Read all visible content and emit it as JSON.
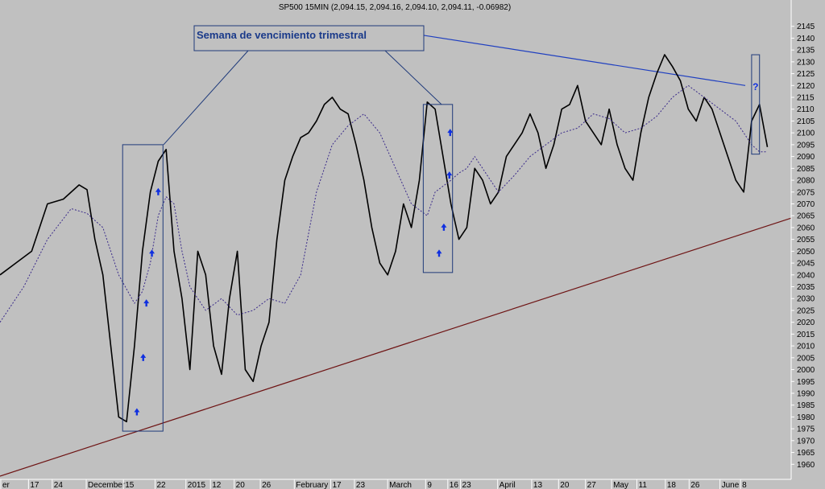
{
  "chart_data": {
    "type": "line",
    "title": "SP500 15MIN (2,094.15, 2,094.16, 2,094.10, 2,094.11, -0.06982)",
    "xlabel": "",
    "ylabel": "",
    "ylim": [
      1955,
      2150
    ],
    "y_ticks": [
      1960,
      1965,
      1970,
      1975,
      1980,
      1985,
      1990,
      1995,
      2000,
      2005,
      2010,
      2015,
      2020,
      2025,
      2030,
      2035,
      2040,
      2045,
      2050,
      2055,
      2060,
      2065,
      2070,
      2075,
      2080,
      2085,
      2090,
      2095,
      2100,
      2105,
      2110,
      2115,
      2120,
      2125,
      2130,
      2135,
      2140,
      2145
    ],
    "x_tick_labels": [
      "er",
      "17",
      "24",
      "December",
      "15",
      "22",
      "2015",
      "12",
      "20",
      "26",
      "February",
      "17",
      "23",
      "March",
      "9",
      "16",
      "23",
      "April",
      "13",
      "20",
      "27",
      "May",
      "11",
      "18",
      "26",
      "June",
      "8"
    ],
    "x_range": [
      0,
      100
    ],
    "x_ticks": [
      0.1,
      3.6,
      6.6,
      10.9,
      15.6,
      19.6,
      23.5,
      26.6,
      29.6,
      32.9,
      37.2,
      41.8,
      44.8,
      49.0,
      53.8,
      56.6,
      58.2,
      62.9,
      67.2,
      70.6,
      74.0,
      77.3,
      80.5,
      84.1,
      87.1,
      91.0,
      93.6
    ],
    "series": [
      {
        "name": "",
        "style": "price",
        "color": "#000000",
        "x": [
          0,
          2,
          4,
          6,
          8,
          10,
          11,
          12,
          13,
          14,
          15,
          16,
          17,
          18,
          19,
          20,
          21,
          22,
          23,
          24,
          25,
          26,
          27,
          28,
          29,
          30,
          31,
          32,
          33,
          34,
          35,
          36,
          37,
          38,
          39,
          40,
          41,
          42,
          43,
          44,
          45,
          46,
          47,
          48,
          49,
          50,
          51,
          52,
          53,
          54,
          55,
          56,
          57,
          58,
          59,
          60,
          61,
          62,
          63,
          64,
          65,
          66,
          67,
          68,
          69,
          70,
          71,
          72,
          73,
          74,
          75,
          76,
          77,
          78,
          79,
          80,
          81,
          82,
          83,
          84,
          85,
          86,
          87,
          88,
          89,
          90,
          91,
          92,
          93,
          94,
          95,
          96,
          97
        ],
        "values": [
          2040,
          2045,
          2050,
          2070,
          2072,
          2078,
          2076,
          2055,
          2040,
          2010,
          1980,
          1978,
          2010,
          2050,
          2075,
          2088,
          2093,
          2050,
          2030,
          2000,
          2050,
          2040,
          2010,
          1998,
          2030,
          2050,
          2000,
          1995,
          2010,
          2020,
          2055,
          2080,
          2090,
          2098,
          2100,
          2105,
          2112,
          2115,
          2110,
          2108,
          2095,
          2080,
          2060,
          2045,
          2040,
          2050,
          2070,
          2060,
          2080,
          2113,
          2110,
          2090,
          2070,
          2055,
          2060,
          2085,
          2080,
          2070,
          2075,
          2090,
          2095,
          2100,
          2108,
          2100,
          2085,
          2095,
          2110,
          2112,
          2120,
          2105,
          2100,
          2095,
          2110,
          2095,
          2085,
          2080,
          2100,
          2115,
          2125,
          2133,
          2128,
          2122,
          2110,
          2105,
          2115,
          2110,
          2100,
          2090,
          2080,
          2075,
          2105,
          2112,
          2094
        ]
      },
      {
        "name": "",
        "style": "moving-average",
        "color": "#3a2a8a",
        "x": [
          0,
          3,
          6,
          9,
          11,
          13,
          15,
          17,
          18,
          19,
          20,
          21,
          22,
          23,
          24,
          26,
          28,
          30,
          32,
          34,
          36,
          38,
          40,
          42,
          44,
          46,
          48,
          50,
          52,
          54,
          55,
          57,
          58,
          59,
          60,
          62,
          63,
          65,
          67,
          69,
          71,
          73,
          75,
          77,
          79,
          81,
          83,
          85,
          87,
          89,
          91,
          93,
          95,
          96,
          97
        ],
        "values": [
          2020,
          2035,
          2055,
          2068,
          2066,
          2060,
          2040,
          2028,
          2033,
          2045,
          2065,
          2073,
          2070,
          2050,
          2035,
          2025,
          2030,
          2023,
          2025,
          2030,
          2028,
          2040,
          2075,
          2095,
          2103,
          2108,
          2100,
          2085,
          2070,
          2065,
          2075,
          2080,
          2083,
          2085,
          2090,
          2080,
          2075,
          2082,
          2090,
          2095,
          2100,
          2102,
          2108,
          2106,
          2100,
          2102,
          2107,
          2115,
          2120,
          2115,
          2110,
          2105,
          2095,
          2092,
          2092
        ]
      }
    ],
    "trendlines": [
      {
        "name": "",
        "color": "#6e1414",
        "x": [
          0,
          100
        ],
        "values": [
          1955,
          2064
        ]
      },
      {
        "name": "",
        "color": "#1f3fc0",
        "x": [
          52,
          94.2
        ],
        "values": [
          2142,
          2120
        ]
      }
    ],
    "annotation": {
      "text": "Semana de vencimiento trimestral"
    },
    "expiry_week_boxes": [
      {
        "x": [
          15.5,
          20.6
        ],
        "y": [
          1974,
          2095
        ]
      },
      {
        "x": [
          53.5,
          57.2
        ],
        "y": [
          2041,
          2112
        ]
      },
      {
        "x": [
          95.0,
          96.0
        ],
        "y": [
          2091,
          2133
        ]
      }
    ],
    "arrow_markers": [
      {
        "x": 17.3,
        "y": 1982
      },
      {
        "x": 18.1,
        "y": 2005
      },
      {
        "x": 18.5,
        "y": 2028
      },
      {
        "x": 19.2,
        "y": 2049
      },
      {
        "x": 20.0,
        "y": 2075
      },
      {
        "x": 55.5,
        "y": 2049
      },
      {
        "x": 56.1,
        "y": 2060
      },
      {
        "x": 56.8,
        "y": 2082
      },
      {
        "x": 56.9,
        "y": 2100
      }
    ],
    "question_marker": {
      "text": "?",
      "x": 95.5,
      "y": 2118
    },
    "grid": false
  }
}
